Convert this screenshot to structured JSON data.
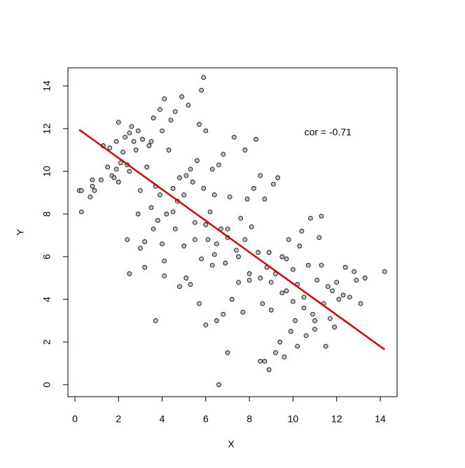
{
  "chart_data": {
    "type": "scatter",
    "xlabel": "X",
    "ylabel": "Y",
    "xlim": [
      -0.32,
      14.77
    ],
    "ylim": [
      -0.56,
      14.85
    ],
    "xticks": [
      0,
      2,
      4,
      6,
      8,
      10,
      12,
      14
    ],
    "yticks": [
      0,
      2,
      4,
      6,
      8,
      10,
      12,
      14
    ],
    "color": "#bebebe",
    "x": [
      0.2,
      0.3,
      0.3,
      0.7,
      0.8,
      0.8,
      0.9,
      1.2,
      1.3,
      1.5,
      1.6,
      1.7,
      1.8,
      1.9,
      1.9,
      2.0,
      2.0,
      2.1,
      2.2,
      2.3,
      2.4,
      2.4,
      2.5,
      2.5,
      2.6,
      2.7,
      2.8,
      2.9,
      2.9,
      3.0,
      3.1,
      3.2,
      3.2,
      3.3,
      3.4,
      3.5,
      3.6,
      3.6,
      3.7,
      3.7,
      3.8,
      3.9,
      3.9,
      4.0,
      4.0,
      4.1,
      4.1,
      4.1,
      4.2,
      4.3,
      4.4,
      4.5,
      4.6,
      4.6,
      4.7,
      4.8,
      4.8,
      4.9,
      5.0,
      5.1,
      5.1,
      5.2,
      5.3,
      5.3,
      5.4,
      5.5,
      5.6,
      5.7,
      5.7,
      5.8,
      5.9,
      5.9,
      6.0,
      6.0,
      6.1,
      6.2,
      6.3,
      6.3,
      6.4,
      6.5,
      6.6,
      6.6,
      6.7,
      6.8,
      6.8,
      6.9,
      7.0,
      7.0,
      7.1,
      7.2,
      7.3,
      7.4,
      7.5,
      7.6,
      7.7,
      7.8,
      7.9,
      8.0,
      8.1,
      8.2,
      8.3,
      8.4,
      8.5,
      8.5,
      8.6,
      8.7,
      8.7,
      8.8,
      8.9,
      9.0,
      9.1,
      9.2,
      9.2,
      9.3,
      9.4,
      9.5,
      9.6,
      9.7,
      9.8,
      9.9,
      10.0,
      10.1,
      10.2,
      10.3,
      10.4,
      10.5,
      10.6,
      10.7,
      10.8,
      10.9,
      11.0,
      11.1,
      11.2,
      11.3,
      11.4,
      11.5,
      11.6,
      11.7,
      11.8,
      11.9,
      12.0,
      12.1,
      12.3,
      12.4,
      12.6,
      12.8,
      12.9,
      13.1,
      13.3,
      14.2,
      4.5,
      5.0,
      5.5,
      6.0,
      6.5,
      7.0,
      7.5,
      8.0,
      8.5,
      9.0,
      9.5,
      10.0,
      10.5,
      11.0,
      3.0,
      3.5,
      2.5,
      5.8,
      6.4,
      7.8,
      8.9,
      9.7,
      10.2,
      11.3
    ],
    "values": [
      9.1,
      9.1,
      8.1,
      8.8,
      9.6,
      9.3,
      9.1,
      9.6,
      11.2,
      10.2,
      11.1,
      9.8,
      9.7,
      10.1,
      11.4,
      12.3,
      9.5,
      10.4,
      10.9,
      11.6,
      10.3,
      6.8,
      5.2,
      11.8,
      12.1,
      11.4,
      11.0,
      11.9,
      8.0,
      6.4,
      11.5,
      6.7,
      5.5,
      10.2,
      11.2,
      11.4,
      12.5,
      7.3,
      9.3,
      3.0,
      7.7,
      8.9,
      12.9,
      11.9,
      6.6,
      13.4,
      5.8,
      5.1,
      8.0,
      11.0,
      12.4,
      9.2,
      7.3,
      12.8,
      8.6,
      9.7,
      4.6,
      13.5,
      6.5,
      9.8,
      5.0,
      13.1,
      10.1,
      4.7,
      9.5,
      6.8,
      10.5,
      12.2,
      3.8,
      13.8,
      14.4,
      9.2,
      11.9,
      2.8,
      6.8,
      8.1,
      10.1,
      5.6,
      6.1,
      3.0,
      10.3,
      0.0,
      7.3,
      10.8,
      3.3,
      5.7,
      7.3,
      1.5,
      8.8,
      4.0,
      11.6,
      6.3,
      4.8,
      7.8,
      3.4,
      11.0,
      8.7,
      4.9,
      7.4,
      9.2,
      11.5,
      6.2,
      9.8,
      1.1,
      3.8,
      8.7,
      1.1,
      5.5,
      0.7,
      3.5,
      9.4,
      5.2,
      1.5,
      9.7,
      2.0,
      6.0,
      1.3,
      4.4,
      6.8,
      2.5,
      5.4,
      3.0,
      1.8,
      6.5,
      7.2,
      4.1,
      2.3,
      5.6,
      7.8,
      3.3,
      2.6,
      4.9,
      6.9,
      7.9,
      3.8,
      1.8,
      4.6,
      3.1,
      4.4,
      2.7,
      4.8,
      4.0,
      4.2,
      5.5,
      4.1,
      5.3,
      4.9,
      3.8,
      5.0,
      5.3,
      8.1,
      8.9,
      7.6,
      7.5,
      6.6,
      6.9,
      6.0,
      5.2,
      5.0,
      4.8,
      4.3,
      3.9,
      3.6,
      3.0,
      9.1,
      8.3,
      10.0,
      5.9,
      8.9,
      6.8,
      6.2,
      5.9,
      4.7,
      5.6
    ],
    "fit": {
      "x": [
        0.2,
        14.2
      ],
      "y": [
        11.95,
        1.65
      ],
      "color": "#dd0000"
    },
    "annotation": {
      "text": "cor = -0.71",
      "x": 11.6,
      "y": 11.8
    }
  }
}
